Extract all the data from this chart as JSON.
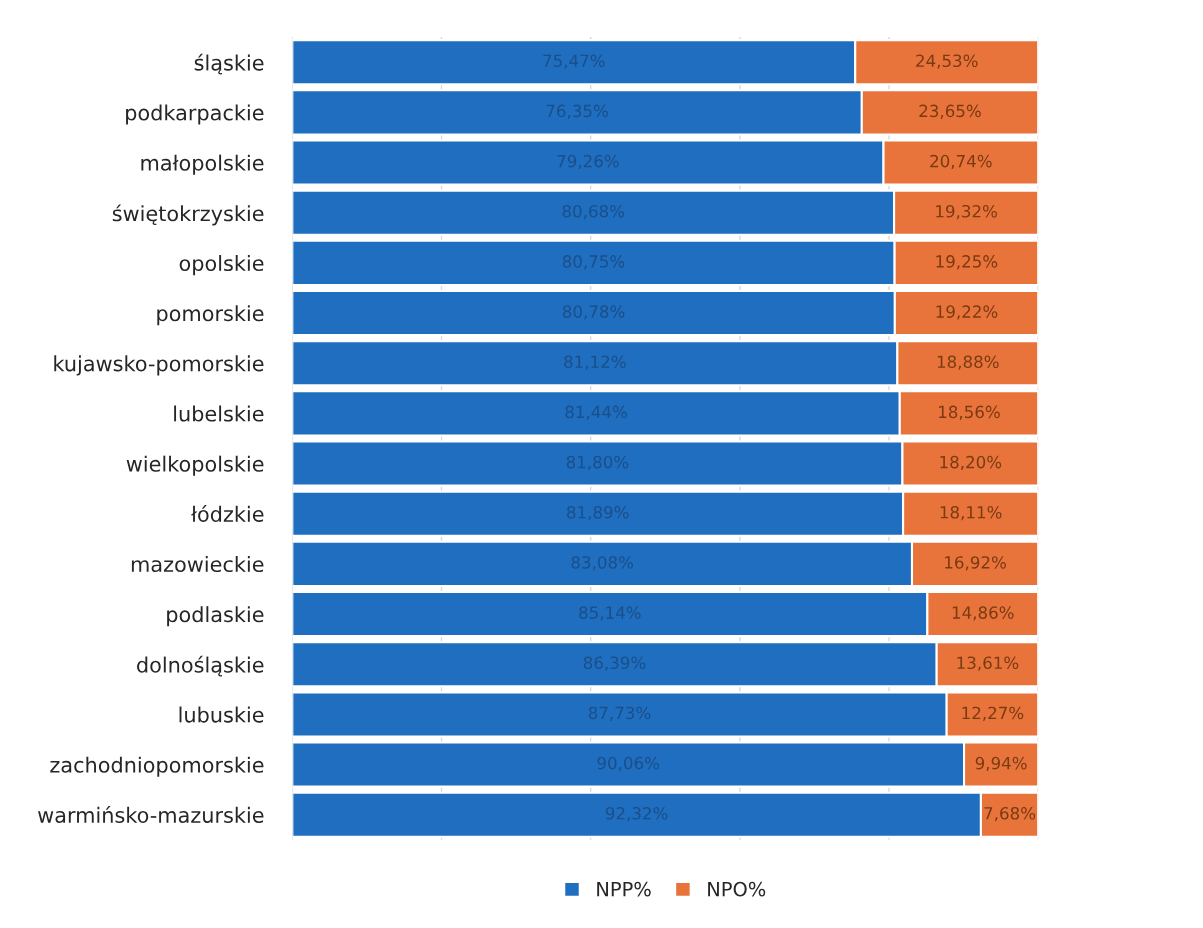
{
  "chart_data": {
    "type": "bar",
    "orientation": "horizontal",
    "stacked": true,
    "categories": [
      "śląskie",
      "podkarpackie",
      "małopolskie",
      "świętokrzyskie",
      "opolskie",
      "pomorskie",
      "kujawsko-pomorskie",
      "lubelskie",
      "wielkopolskie",
      "łódzkie",
      "mazowieckie",
      "podlaskie",
      "dolnośląskie",
      "lubuskie",
      "zachodniopomorskie",
      "warmińsko-mazurskie"
    ],
    "series": [
      {
        "name": "NPP%",
        "color": "#1f6ebf",
        "values": [
          75.47,
          76.35,
          79.26,
          80.68,
          80.75,
          80.78,
          81.12,
          81.44,
          81.8,
          81.89,
          83.08,
          85.14,
          86.39,
          87.73,
          90.06,
          92.32
        ],
        "value_labels": [
          "75,47%",
          "76,35%",
          "79,26%",
          "80,68%",
          "80,75%",
          "80,78%",
          "81,12%",
          "81,44%",
          "81,80%",
          "81,89%",
          "83,08%",
          "85,14%",
          "86,39%",
          "87,73%",
          "90,06%",
          "92,32%"
        ]
      },
      {
        "name": "NPO%",
        "color": "#e8743b",
        "values": [
          24.53,
          23.65,
          20.74,
          19.32,
          19.25,
          19.22,
          18.88,
          18.56,
          18.2,
          18.11,
          16.92,
          14.86,
          13.61,
          12.27,
          9.94,
          7.68
        ],
        "value_labels": [
          "24,53%",
          "23,65%",
          "20,74%",
          "19,32%",
          "19,25%",
          "19,22%",
          "18,88%",
          "18,56%",
          "18,20%",
          "18,11%",
          "16,92%",
          "14,86%",
          "13,61%",
          "12,27%",
          "9,94%",
          "7,68%"
        ]
      }
    ],
    "xlim": [
      0,
      100
    ],
    "xticks": [
      {
        "value": 0,
        "label": null
      },
      {
        "value": 20,
        "label": null
      },
      {
        "value": 40,
        "label": null
      },
      {
        "value": 60,
        "label": null
      },
      {
        "value": 80,
        "label": null
      },
      {
        "value": 100,
        "label": null
      }
    ],
    "grid": "x",
    "tick_labels": "y",
    "legend": "bottom"
  }
}
